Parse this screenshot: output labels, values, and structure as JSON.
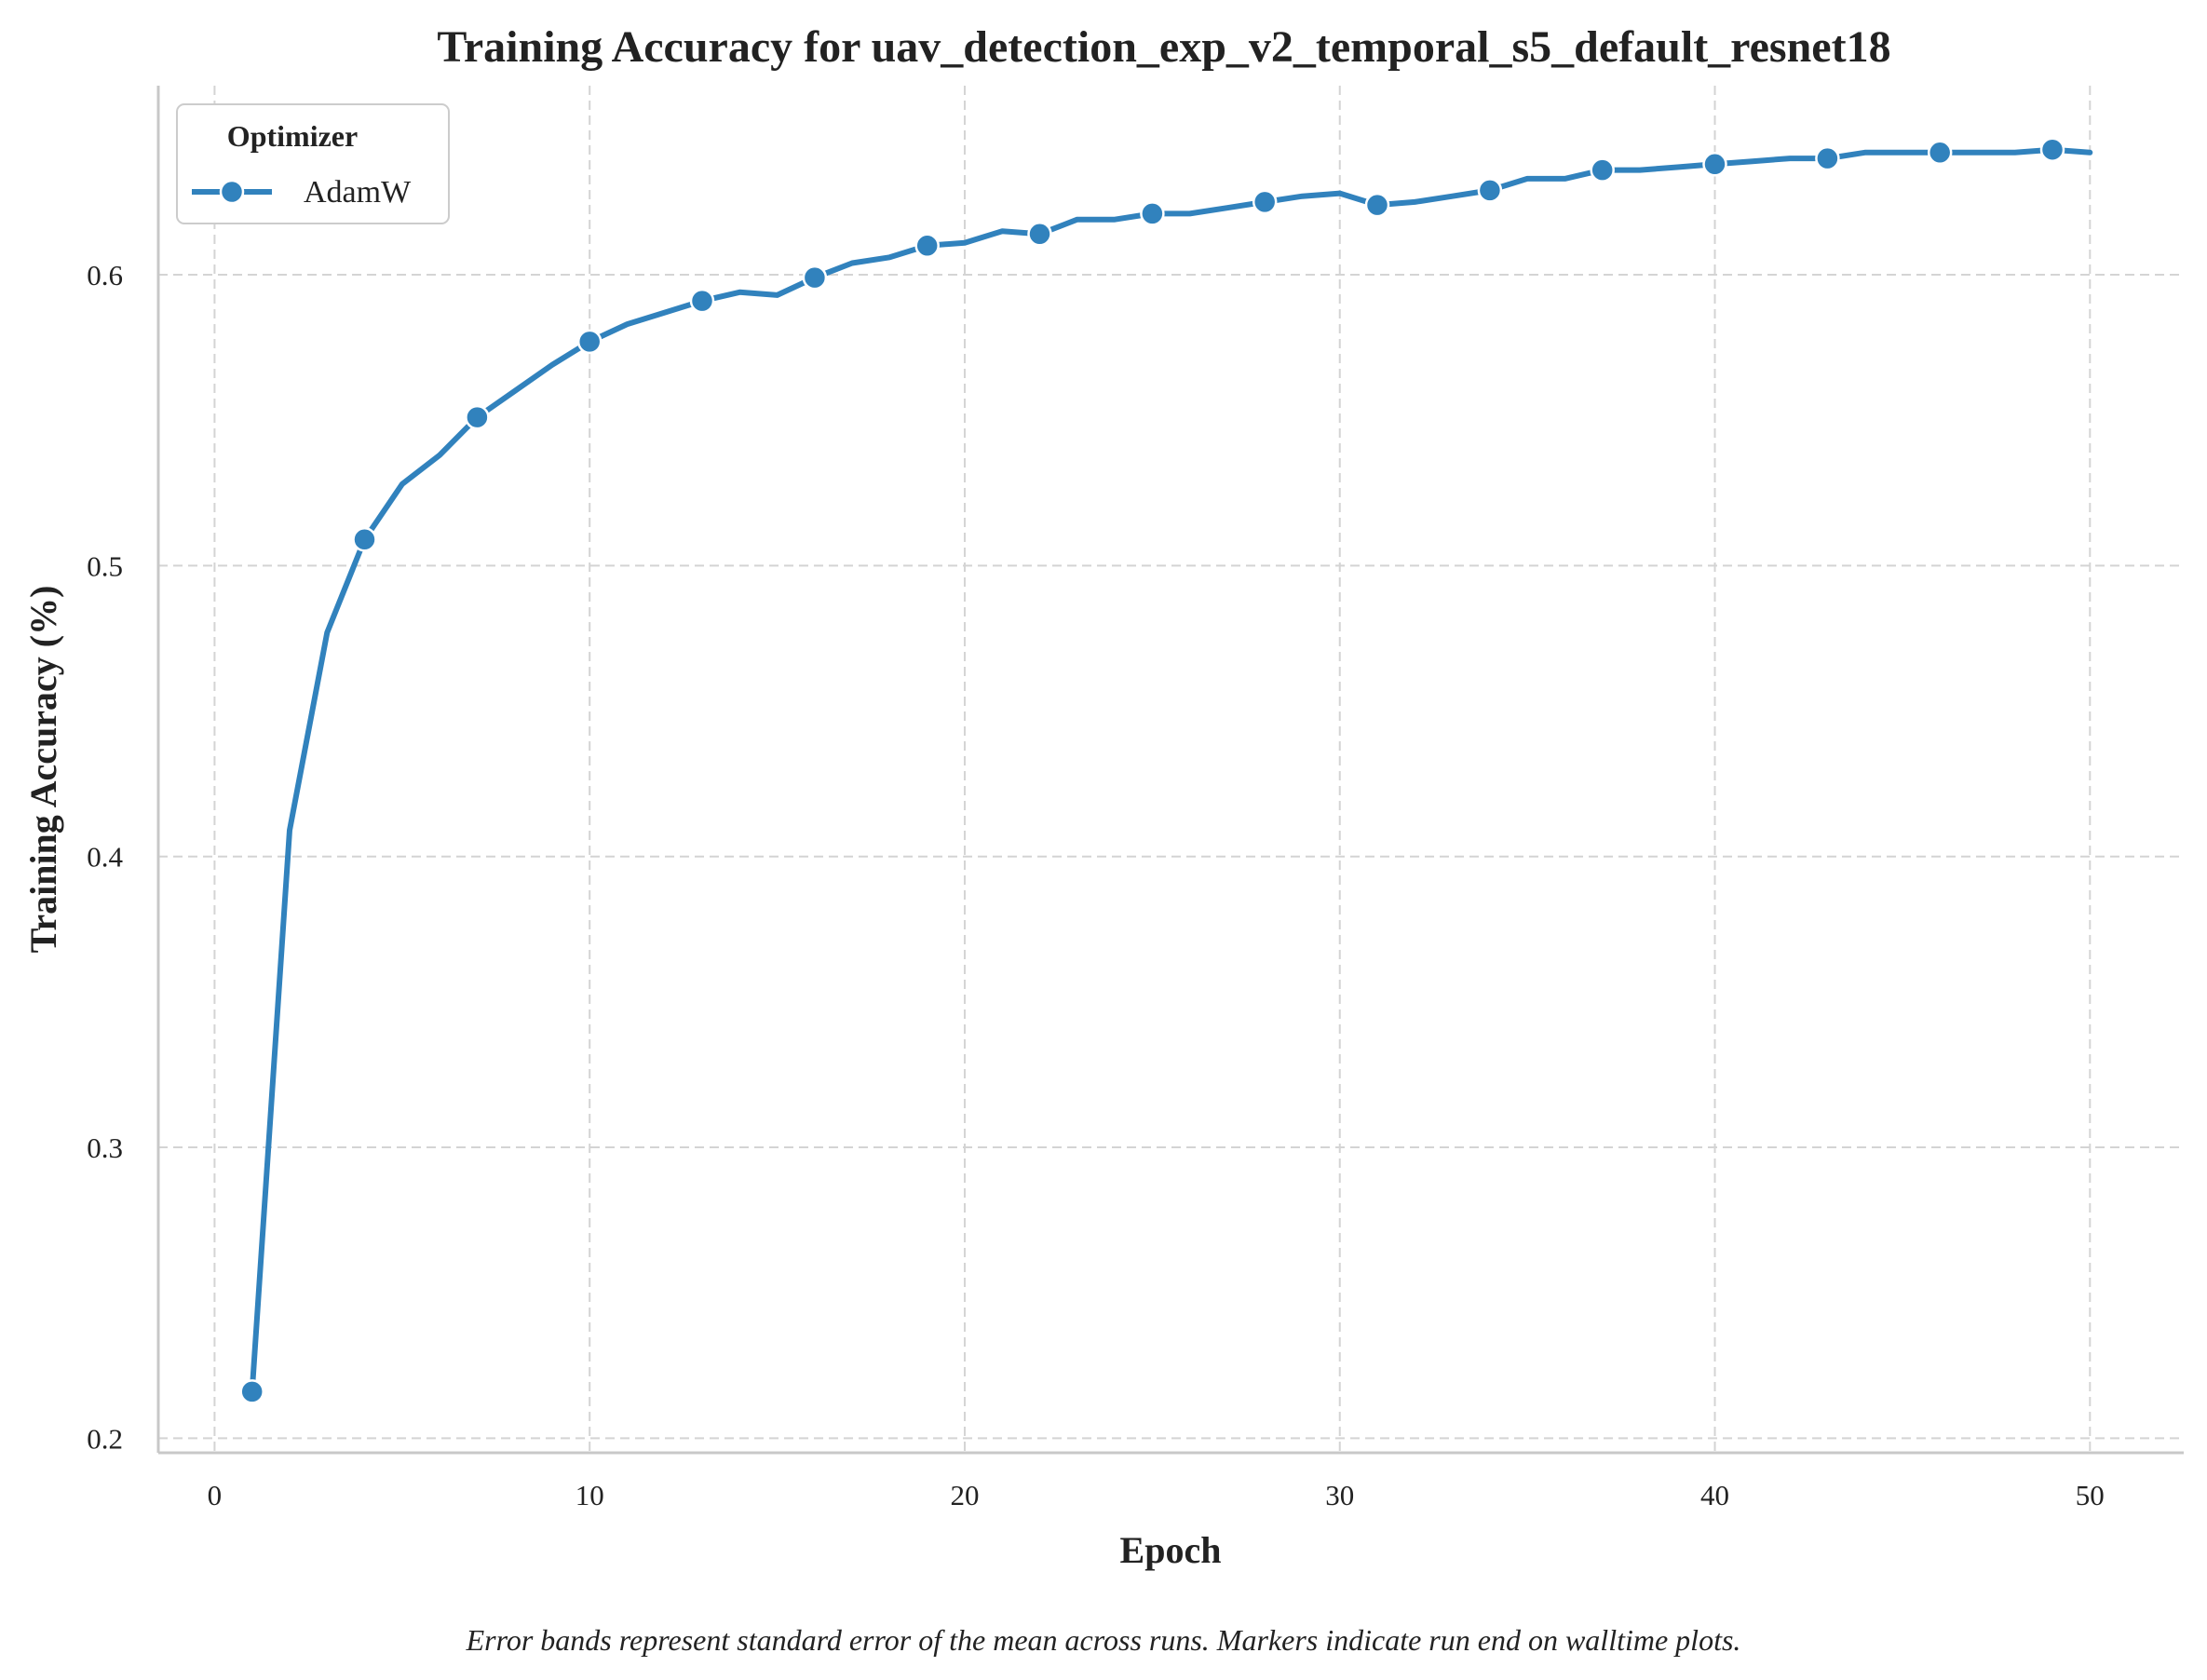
{
  "chart_data": {
    "type": "line",
    "title": "Training Accuracy for uav_detection_exp_v2_temporal_s5_default_resnet18",
    "xlabel": "Epoch",
    "ylabel": "Training Accuracy (%)",
    "xlim": [
      -1.5,
      52.5
    ],
    "ylim": [
      0.195,
      0.665
    ],
    "xticks": [
      0,
      10,
      20,
      30,
      40,
      50
    ],
    "yticks": [
      0.2,
      0.3,
      0.4,
      0.5,
      0.6
    ],
    "xtick_labels": [
      "0",
      "10",
      "20",
      "30",
      "40",
      "50"
    ],
    "ytick_labels": [
      "0.2",
      "0.3",
      "0.4",
      "0.5",
      "0.6"
    ],
    "grid": true,
    "legend": {
      "title": "Optimizer",
      "placement": "top-left"
    },
    "caption": "Error bands represent standard error of the mean across runs. Markers indicate run end on walltime plots.",
    "series": [
      {
        "name": "AdamW",
        "color": "#3182bd",
        "marker_every": 3,
        "x": [
          1,
          2,
          3,
          4,
          5,
          6,
          7,
          8,
          9,
          10,
          11,
          12,
          13,
          14,
          15,
          16,
          17,
          18,
          19,
          20,
          21,
          22,
          23,
          24,
          25,
          26,
          27,
          28,
          29,
          30,
          31,
          32,
          33,
          34,
          35,
          36,
          37,
          38,
          39,
          40,
          41,
          42,
          43,
          44,
          45,
          46,
          47,
          48,
          49,
          50
        ],
        "y": [
          0.216,
          0.409,
          0.477,
          0.509,
          0.528,
          0.538,
          0.551,
          0.56,
          0.569,
          0.577,
          0.583,
          0.587,
          0.591,
          0.594,
          0.593,
          0.599,
          0.604,
          0.606,
          0.61,
          0.611,
          0.615,
          0.614,
          0.619,
          0.619,
          0.621,
          0.621,
          0.623,
          0.625,
          0.627,
          0.628,
          0.624,
          0.625,
          0.627,
          0.629,
          0.633,
          0.633,
          0.636,
          0.636,
          0.637,
          0.638,
          0.639,
          0.64,
          0.64,
          0.642,
          0.642,
          0.642,
          0.642,
          0.642,
          0.643,
          0.642
        ]
      }
    ]
  }
}
